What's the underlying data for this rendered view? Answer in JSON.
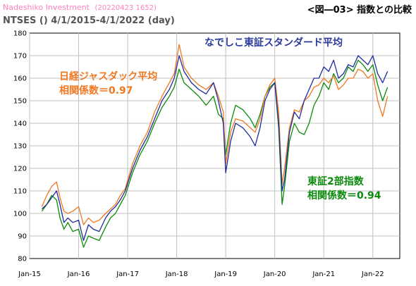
{
  "header": {
    "brand": "Nadeshiko Investment",
    "stamp": "(20220423 1652)",
    "figure_label": "<図―03> 指数との比較"
  },
  "subtitle": "NTSES () 4/1/2015-4/1/2022 (day)",
  "colors": {
    "nadeshiko": "#1f2c9e",
    "jasdaq": "#f07820",
    "tse2": "#0a8a0a",
    "grid": "#c0c0c0",
    "title_blue": "#2a3a9a"
  },
  "chart_data": {
    "type": "line",
    "title": "なでしこ東証スタンダード平均",
    "ylim": [
      80,
      180
    ],
    "yticks": [
      80,
      90,
      100,
      110,
      120,
      130,
      140,
      150,
      160,
      170,
      180
    ],
    "xlim": [
      2015.0,
      2022.55
    ],
    "xticks": [
      {
        "label": "Jan-15",
        "x": 2015.0
      },
      {
        "label": "Jan-16",
        "x": 2016.0
      },
      {
        "label": "Jan-17",
        "x": 2017.0
      },
      {
        "label": "Jan-18",
        "x": 2018.0
      },
      {
        "label": "Jan-19",
        "x": 2019.0
      },
      {
        "label": "Jan-20",
        "x": 2020.0
      },
      {
        "label": "Jan-21",
        "x": 2021.0
      },
      {
        "label": "Jan-22",
        "x": 2022.0
      }
    ],
    "grid": true,
    "series": [
      {
        "name": "なでしこ東証スタンダード平均",
        "x": [
          2015.25,
          2015.35,
          2015.45,
          2015.55,
          2015.62,
          2015.7,
          2015.78,
          2015.88,
          2016.0,
          2016.1,
          2016.2,
          2016.3,
          2016.42,
          2016.55,
          2016.65,
          2016.75,
          2016.85,
          2016.95,
          2017.1,
          2017.25,
          2017.4,
          2017.55,
          2017.7,
          2017.85,
          2017.95,
          2018.05,
          2018.15,
          2018.3,
          2018.45,
          2018.6,
          2018.75,
          2018.85,
          2018.95,
          2019.0,
          2019.1,
          2019.2,
          2019.35,
          2019.5,
          2019.6,
          2019.7,
          2019.8,
          2019.9,
          2020.0,
          2020.08,
          2020.15,
          2020.2,
          2020.3,
          2020.4,
          2020.5,
          2020.6,
          2020.7,
          2020.8,
          2020.9,
          2021.0,
          2021.1,
          2021.2,
          2021.3,
          2021.4,
          2021.5,
          2021.6,
          2021.7,
          2021.8,
          2021.9,
          2022.0,
          2022.1,
          2022.2,
          2022.3
        ],
        "y": [
          102,
          104,
          107,
          110,
          104,
          96,
          98,
          96,
          97,
          88,
          95,
          93,
          92,
          98,
          101,
          103,
          106,
          110,
          120,
          128,
          134,
          142,
          150,
          155,
          160,
          170,
          163,
          158,
          155,
          153,
          158,
          150,
          140,
          118,
          132,
          140,
          138,
          134,
          130,
          138,
          150,
          155,
          158,
          140,
          110,
          115,
          136,
          145,
          142,
          150,
          155,
          160,
          160,
          165,
          163,
          168,
          160,
          162,
          166,
          165,
          170,
          168,
          166,
          170,
          162,
          158,
          163
        ]
      },
      {
        "name": "日経ジャスダック平均",
        "x": [
          2015.25,
          2015.35,
          2015.45,
          2015.55,
          2015.62,
          2015.7,
          2015.78,
          2015.88,
          2016.0,
          2016.1,
          2016.2,
          2016.3,
          2016.42,
          2016.55,
          2016.65,
          2016.75,
          2016.85,
          2016.95,
          2017.1,
          2017.25,
          2017.4,
          2017.55,
          2017.7,
          2017.85,
          2017.95,
          2018.05,
          2018.15,
          2018.3,
          2018.45,
          2018.6,
          2018.75,
          2018.85,
          2018.95,
          2019.0,
          2019.1,
          2019.2,
          2019.35,
          2019.5,
          2019.6,
          2019.7,
          2019.8,
          2019.9,
          2020.0,
          2020.08,
          2020.15,
          2020.2,
          2020.3,
          2020.4,
          2020.5,
          2020.6,
          2020.7,
          2020.8,
          2020.9,
          2021.0,
          2021.1,
          2021.2,
          2021.3,
          2021.4,
          2021.5,
          2021.6,
          2021.7,
          2021.8,
          2021.9,
          2022.0,
          2022.1,
          2022.2,
          2022.3
        ],
        "y": [
          103,
          108,
          112,
          114,
          107,
          101,
          100,
          101,
          103,
          95,
          98,
          96,
          97,
          100,
          102,
          104,
          108,
          111,
          122,
          130,
          136,
          145,
          152,
          158,
          162,
          175,
          165,
          160,
          157,
          155,
          158,
          152,
          145,
          122,
          136,
          142,
          141,
          138,
          136,
          142,
          152,
          157,
          160,
          145,
          113,
          120,
          138,
          146,
          145,
          150,
          152,
          156,
          157,
          160,
          158,
          161,
          155,
          157,
          160,
          160,
          164,
          163,
          160,
          162,
          150,
          143,
          152
        ]
      },
      {
        "name": "東証2部指数",
        "x": [
          2015.25,
          2015.35,
          2015.45,
          2015.55,
          2015.62,
          2015.7,
          2015.78,
          2015.88,
          2016.0,
          2016.1,
          2016.2,
          2016.3,
          2016.42,
          2016.55,
          2016.65,
          2016.75,
          2016.85,
          2016.95,
          2017.1,
          2017.25,
          2017.4,
          2017.55,
          2017.7,
          2017.85,
          2017.95,
          2018.05,
          2018.15,
          2018.3,
          2018.45,
          2018.6,
          2018.75,
          2018.85,
          2018.95,
          2019.0,
          2019.1,
          2019.2,
          2019.35,
          2019.5,
          2019.6,
          2019.7,
          2019.8,
          2019.9,
          2020.0,
          2020.08,
          2020.15,
          2020.2,
          2020.3,
          2020.4,
          2020.5,
          2020.6,
          2020.7,
          2020.8,
          2020.9,
          2021.0,
          2021.1,
          2021.2,
          2021.3,
          2021.4,
          2021.5,
          2021.6,
          2021.7,
          2021.8,
          2021.9,
          2022.0,
          2022.1,
          2022.2,
          2022.3
        ],
        "y": [
          101,
          104,
          108,
          106,
          98,
          93,
          96,
          92,
          93,
          85,
          90,
          89,
          88,
          94,
          98,
          100,
          104,
          108,
          118,
          126,
          132,
          140,
          147,
          152,
          156,
          164,
          158,
          155,
          152,
          148,
          152,
          144,
          142,
          126,
          140,
          148,
          146,
          142,
          138,
          144,
          152,
          156,
          158,
          138,
          104,
          112,
          132,
          140,
          136,
          135,
          140,
          148,
          152,
          158,
          155,
          162,
          158,
          160,
          165,
          163,
          168,
          166,
          163,
          166,
          157,
          150,
          156
        ]
      }
    ],
    "annotations": [
      {
        "line1": "日経ジャスダック平均",
        "line2": "相関係数＝0.97"
      },
      {
        "line1": "東証2部指数",
        "line2": "相関係数＝0.94"
      }
    ]
  }
}
